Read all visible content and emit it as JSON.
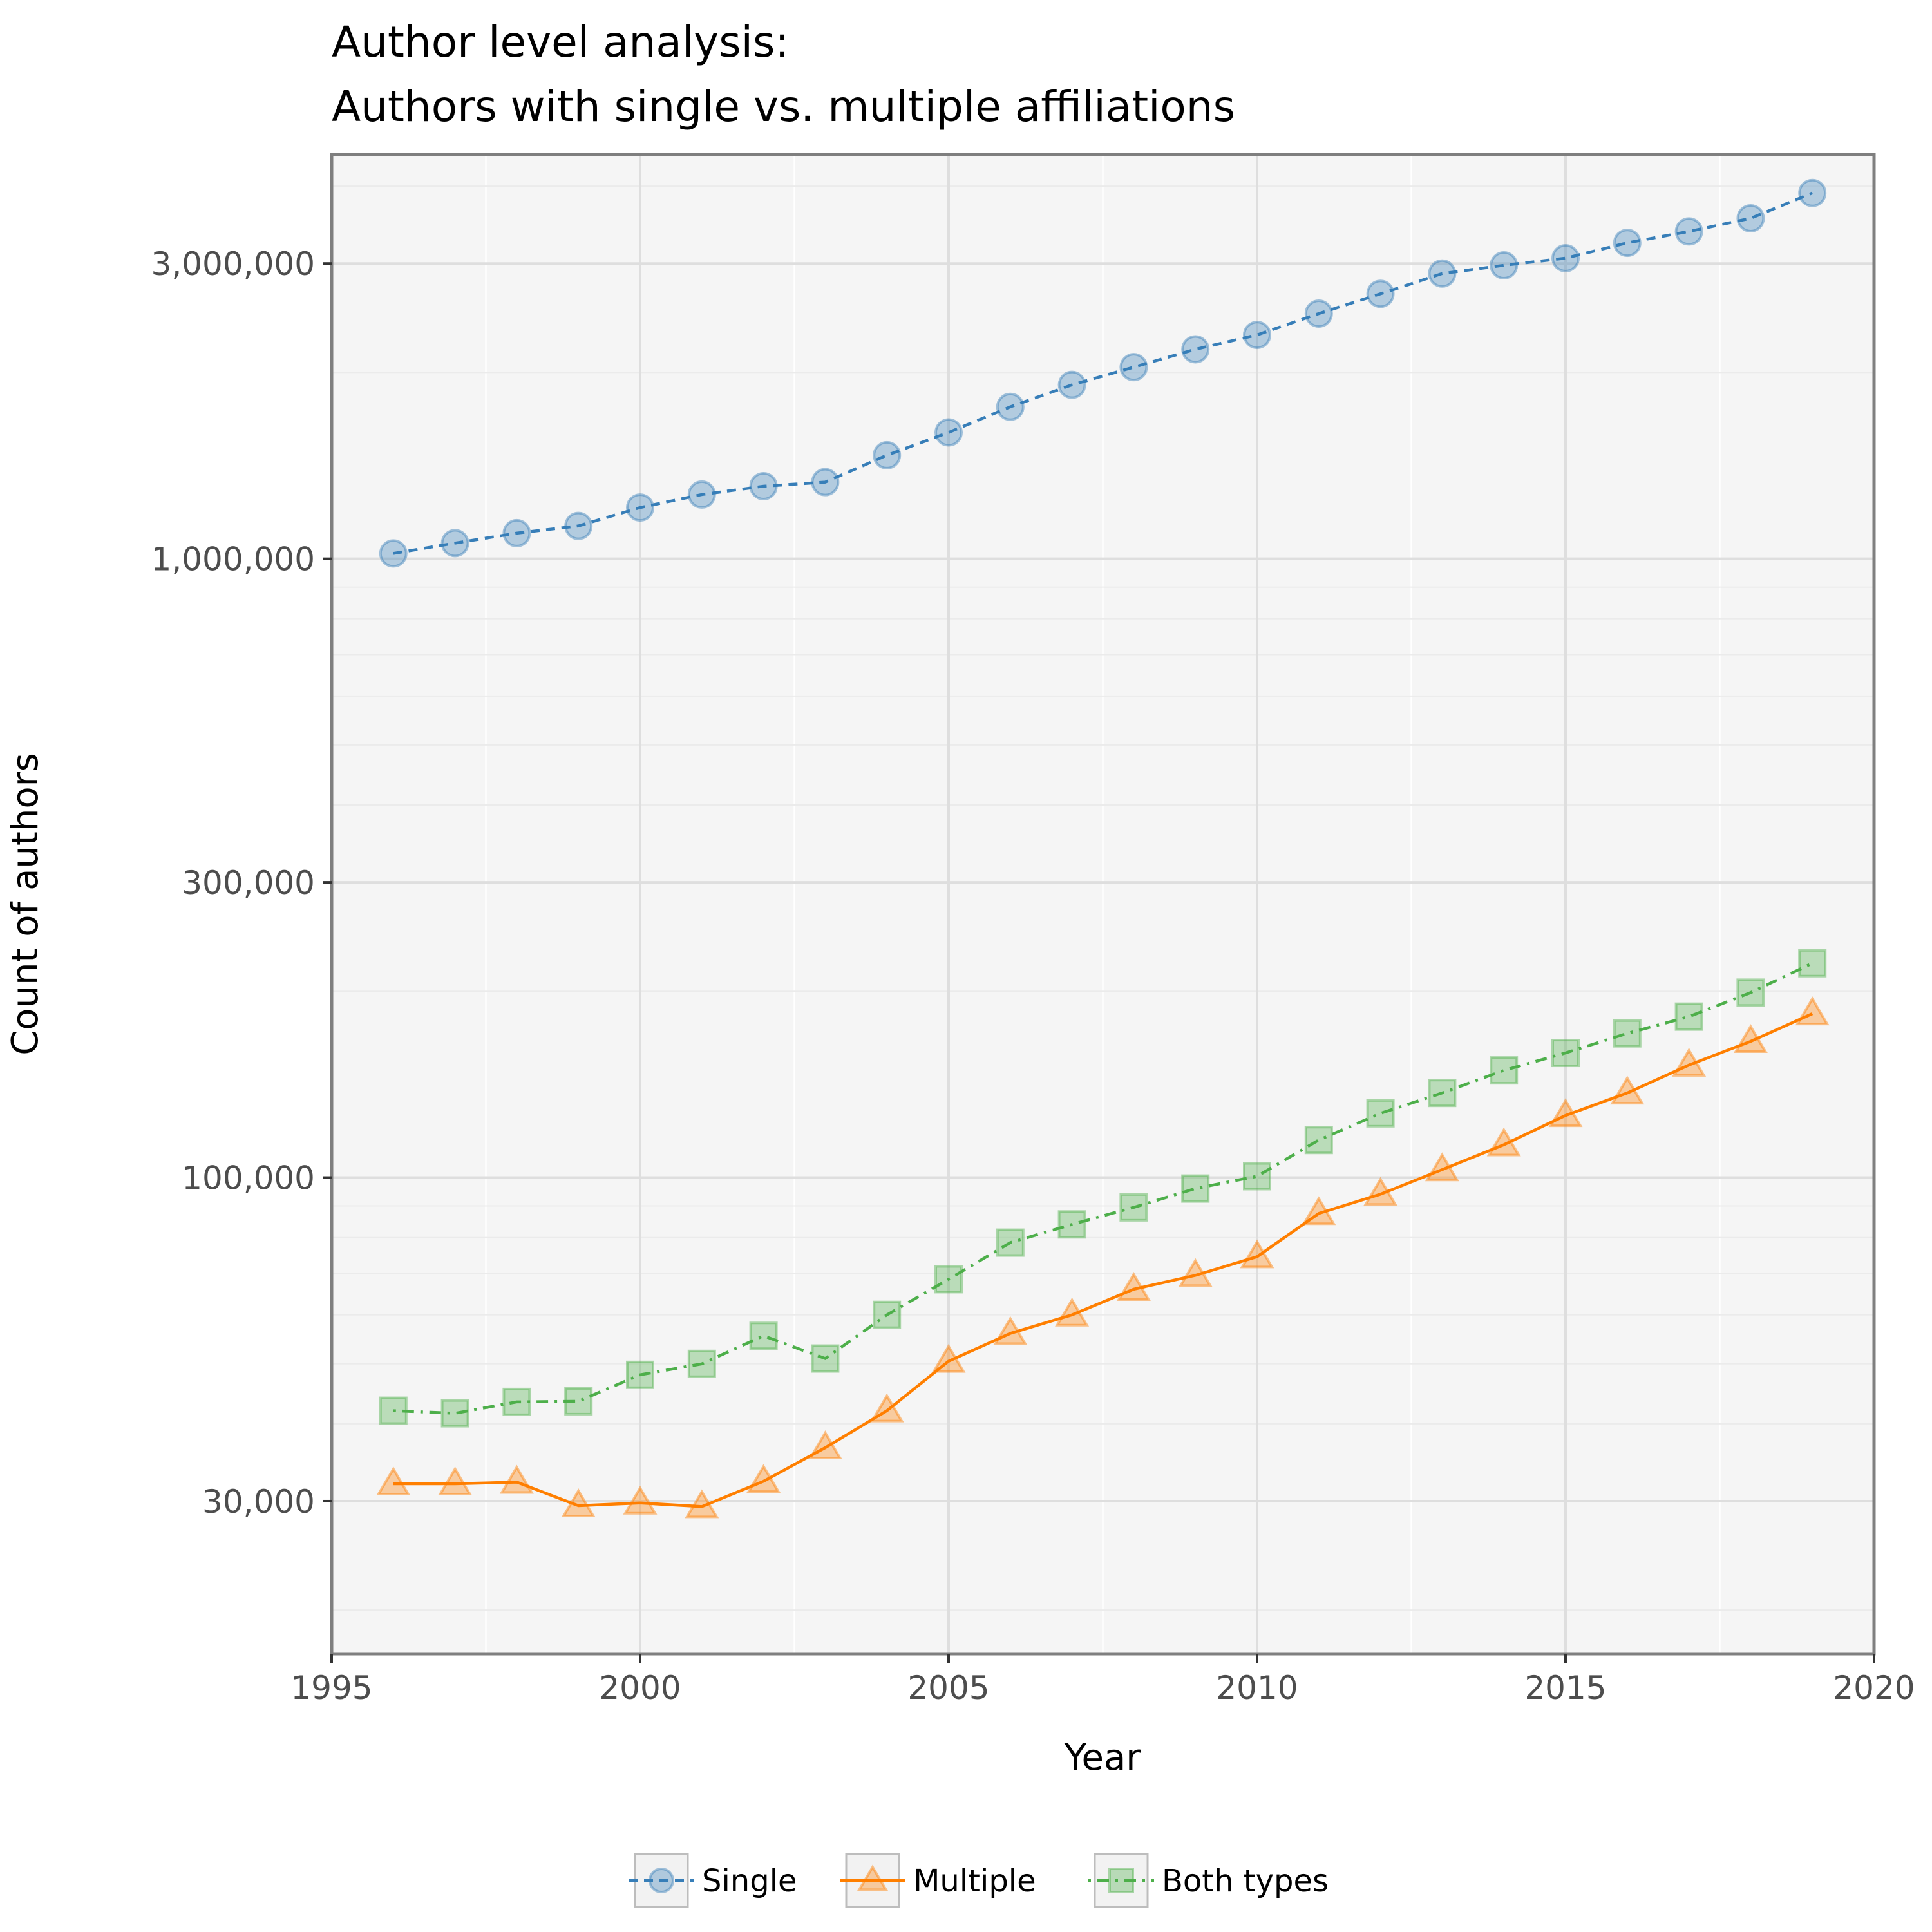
{
  "chart_data": {
    "type": "line",
    "title": "Author level analysis:",
    "subtitle": "Authors with single vs. multiple affiliations",
    "xlabel": "Year",
    "ylabel": "Count of authors",
    "y_scale": "log",
    "xlim": [
      1995,
      2020
    ],
    "ylim": [
      17000,
      4500000
    ],
    "x_ticks": [
      1995,
      2000,
      2005,
      2010,
      2015,
      2020
    ],
    "x_tick_labels": [
      "1995",
      "2000",
      "2005",
      "2010",
      "2015",
      "2020"
    ],
    "y_ticks": [
      30000,
      100000,
      300000,
      1000000,
      3000000
    ],
    "y_tick_labels": [
      "30,000",
      "100,000",
      "300,000",
      "1,000,000",
      "3,000,000"
    ],
    "grid": true,
    "legend_position": "bottom",
    "x": [
      1996,
      1997,
      1998,
      1999,
      2000,
      2001,
      2002,
      2003,
      2004,
      2005,
      2006,
      2007,
      2008,
      2009,
      2010,
      2011,
      2012,
      2013,
      2014,
      2015,
      2016,
      2017,
      2018,
      2019
    ],
    "series": [
      {
        "name": "Single",
        "color": "#377eb8",
        "line_style": "dashed",
        "marker": "circle",
        "values": [
          1020000,
          1060000,
          1100000,
          1130000,
          1210000,
          1270000,
          1310000,
          1330000,
          1470000,
          1600000,
          1760000,
          1910000,
          2040000,
          2180000,
          2300000,
          2490000,
          2680000,
          2890000,
          2980000,
          3060000,
          3240000,
          3380000,
          3550000,
          3900000
        ]
      },
      {
        "name": "Multiple",
        "color": "#ff7f00",
        "line_style": "solid",
        "marker": "triangle",
        "values": [
          32000,
          32000,
          32200,
          29500,
          29800,
          29400,
          32300,
          36600,
          42000,
          50500,
          56000,
          60000,
          66000,
          69500,
          74500,
          87500,
          94000,
          103000,
          113000,
          126000,
          137000,
          152000,
          166000,
          184000
        ]
      },
      {
        "name": "Both types",
        "color": "#4daf4a",
        "line_style": "dotdash",
        "marker": "square",
        "values": [
          42000,
          41600,
          43400,
          43500,
          48000,
          50000,
          55500,
          51000,
          60000,
          68500,
          78500,
          84000,
          89500,
          96000,
          100500,
          115000,
          127000,
          137000,
          149000,
          159000,
          171000,
          182000,
          199000,
          222000
        ]
      }
    ]
  }
}
